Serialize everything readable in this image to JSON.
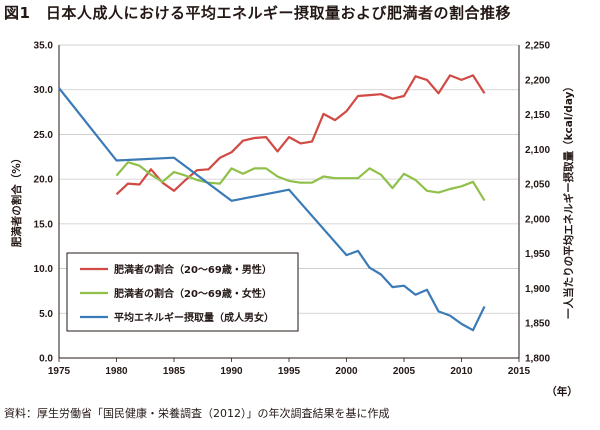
{
  "title": "図1　日本人成人における平均エネルギー摂取量および肥満者の割合推移",
  "source": "資料：厚生労働省「国民健康・栄養調査（2012）」の年次調査結果を基に作成",
  "chart_data": {
    "type": "line",
    "xlabel": "（年）",
    "ylabel_left": "肥満者の割合（%）",
    "ylabel_right": "一人当たりの平均エネルギー摂取量（kcal/day）",
    "xlim": [
      1975,
      2015
    ],
    "x_ticks": [
      1975,
      1980,
      1985,
      1990,
      1995,
      2000,
      2005,
      2010,
      2015
    ],
    "ylim_left": [
      0,
      35
    ],
    "y_left_ticks": [
      "0.0",
      "5.0",
      "10.0",
      "15.0",
      "20.0",
      "25.0",
      "30.0",
      "35.0"
    ],
    "ylim_right": [
      1800,
      2250
    ],
    "y_right_ticks": [
      "1,800",
      "1,850",
      "1,900",
      "1,950",
      "2,000",
      "2,050",
      "2,100",
      "2,150",
      "2,200",
      "2,250"
    ],
    "grid": true,
    "legend_position": "bottom-left",
    "series": [
      {
        "name": "肥満者の割合（20〜69歳・男性）",
        "axis": "left",
        "color": "#d24a44",
        "x": [
          1980,
          1981,
          1982,
          1983,
          1984,
          1985,
          1986,
          1987,
          1988,
          1989,
          1990,
          1991,
          1992,
          1993,
          1994,
          1995,
          1996,
          1997,
          1998,
          1999,
          2000,
          2001,
          2002,
          2003,
          2004,
          2005,
          2006,
          2007,
          2008,
          2009,
          2010,
          2011,
          2012
        ],
        "values": [
          18.3,
          19.5,
          19.4,
          21.1,
          19.6,
          18.7,
          19.9,
          21.0,
          21.1,
          22.4,
          23.0,
          24.3,
          24.6,
          24.7,
          23.1,
          24.7,
          24.0,
          24.2,
          27.3,
          26.6,
          27.6,
          29.3,
          29.4,
          29.5,
          29.0,
          29.3,
          31.5,
          31.1,
          29.6,
          31.6,
          31.1,
          31.6,
          29.6
        ]
      },
      {
        "name": "肥満者の割合（20〜69歳・女性）",
        "axis": "left",
        "color": "#8fc04a",
        "x": [
          1980,
          1981,
          1982,
          1983,
          1984,
          1985,
          1986,
          1987,
          1988,
          1989,
          1990,
          1991,
          1992,
          1993,
          1994,
          1995,
          1996,
          1997,
          1998,
          1999,
          2000,
          2001,
          2002,
          2003,
          2004,
          2005,
          2006,
          2007,
          2008,
          2009,
          2010,
          2011,
          2012
        ],
        "values": [
          20.4,
          21.9,
          21.5,
          20.5,
          19.7,
          20.8,
          20.4,
          19.9,
          19.6,
          19.5,
          21.2,
          20.6,
          21.2,
          21.2,
          20.3,
          19.8,
          19.6,
          19.6,
          20.3,
          20.1,
          20.1,
          20.1,
          21.2,
          20.5,
          19.0,
          20.6,
          19.9,
          18.7,
          18.5,
          18.9,
          19.2,
          19.7,
          17.6
        ]
      },
      {
        "name": "平均エネルギー摂取量（成人男女）",
        "axis": "right",
        "color": "#3a7ab6",
        "x": [
          1975,
          1980,
          1985,
          1990,
          1995,
          2000,
          2001,
          2002,
          2003,
          2004,
          2005,
          2006,
          2007,
          2008,
          2009,
          2010,
          2011,
          2012
        ],
        "values": [
          2188,
          2084,
          2088,
          2026,
          2042,
          1948,
          1954,
          1930,
          1920,
          1902,
          1904,
          1891,
          1898,
          1867,
          1861,
          1849,
          1840,
          1874
        ]
      }
    ]
  }
}
